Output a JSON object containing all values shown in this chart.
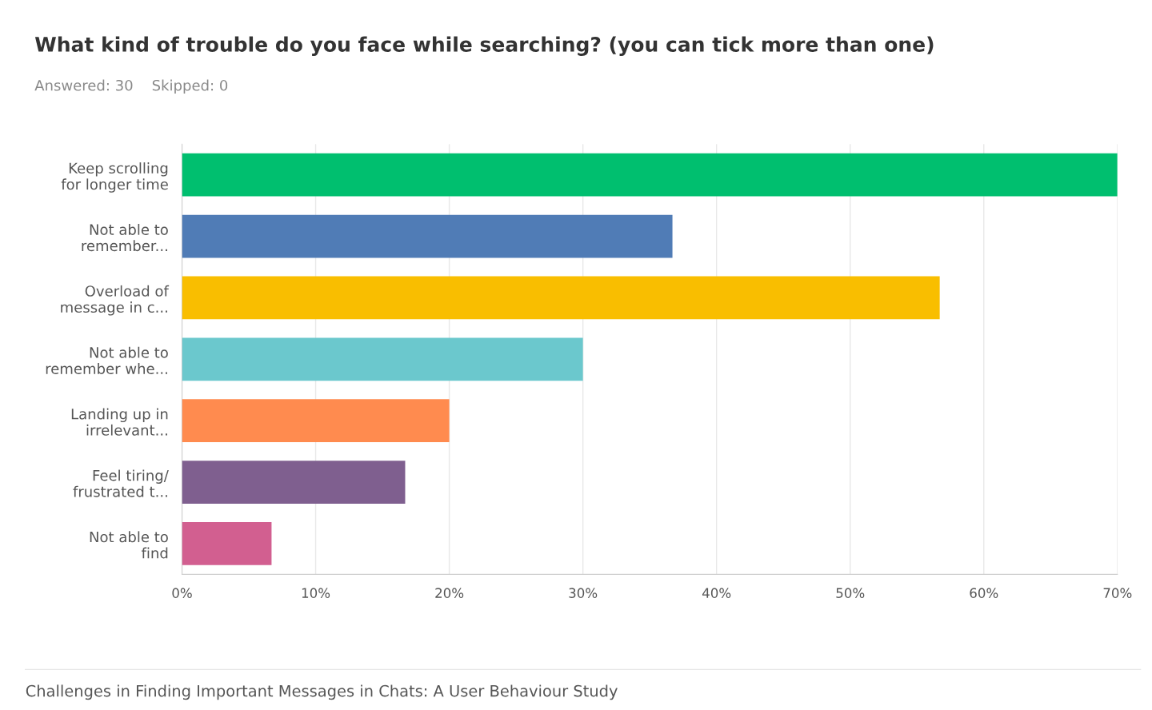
{
  "chart_data": {
    "type": "bar",
    "orientation": "horizontal",
    "title": "What kind of trouble do you face while searching? (you can tick more than one)",
    "subtitle": "Answered: 30    Skipped: 0",
    "categories": [
      "Keep scrolling\nfor longer time",
      "Not able to\nremember...",
      "Overload of\nmessage in c...",
      "Not able to\nremember whe...",
      "Landing up in\nirrelevant...",
      "Feel tiring/\nfrustrated t...",
      "Not able to\nfind"
    ],
    "values": [
      70,
      36.7,
      56.7,
      30,
      20,
      16.7,
      6.7
    ],
    "colors": [
      "#00bf6f",
      "#507cb6",
      "#f9be00",
      "#6bc8cd",
      "#ff8b4f",
      "#7f5f8f",
      "#d25f90"
    ],
    "xlim": [
      0,
      70
    ],
    "xticks": [
      {
        "value": 0,
        "label": "0%"
      },
      {
        "value": 10,
        "label": "10%"
      },
      {
        "value": 20,
        "label": "20%"
      },
      {
        "value": 30,
        "label": "30%"
      },
      {
        "value": 40,
        "label": "40%"
      },
      {
        "value": 50,
        "label": "50%"
      },
      {
        "value": 60,
        "label": "60%"
      },
      {
        "value": 70,
        "label": "70%"
      }
    ],
    "grid": "x",
    "annotations": [
      "Challenges in Finding Important Messages in Chats: A User Behaviour Study"
    ]
  }
}
